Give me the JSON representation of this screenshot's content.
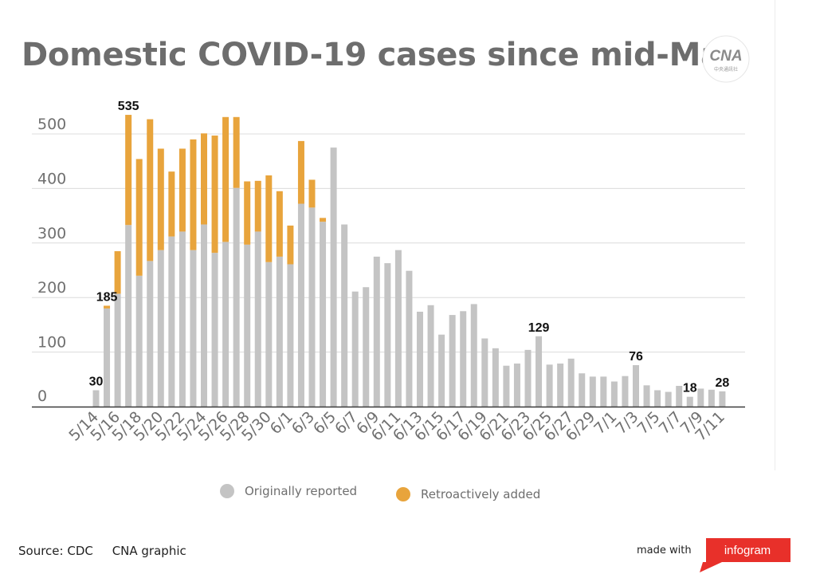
{
  "title": "Domestic COVID-19 cases since mid-May",
  "logo": {
    "text": "CNA",
    "subtext": "中央通訊社"
  },
  "legend": [
    {
      "label": "Originally reported",
      "color": "#c4c4c4"
    },
    {
      "label": "Retroactively added",
      "color": "#e8a43c"
    }
  ],
  "footer": {
    "source": "Source: CDC",
    "credit": "CNA graphic",
    "made_with": "made with",
    "brand": "infogram"
  },
  "chart_data": {
    "type": "bar",
    "stacked": true,
    "categories": [
      "5/14",
      "5/15",
      "5/16",
      "5/17",
      "5/18",
      "5/19",
      "5/20",
      "5/21",
      "5/22",
      "5/23",
      "5/24",
      "5/25",
      "5/26",
      "5/27",
      "5/28",
      "5/29",
      "5/30",
      "5/31",
      "6/1",
      "6/2",
      "6/3",
      "6/4",
      "6/5",
      "6/6",
      "6/7",
      "6/8",
      "6/9",
      "6/10",
      "6/11",
      "6/12",
      "6/13",
      "6/14",
      "6/15",
      "6/16",
      "6/17",
      "6/18",
      "6/19",
      "6/20",
      "6/21",
      "6/22",
      "6/23",
      "6/24",
      "6/25",
      "6/26",
      "6/27",
      "6/28",
      "6/29",
      "6/30",
      "7/1",
      "7/2",
      "7/3",
      "7/4",
      "7/5",
      "7/6",
      "7/7",
      "7/8",
      "7/9",
      "7/10",
      "7/11"
    ],
    "tick_labels": [
      "5/14",
      "5/16",
      "5/18",
      "5/20",
      "5/22",
      "5/24",
      "5/26",
      "5/28",
      "5/30",
      "6/1",
      "6/3",
      "6/5",
      "6/7",
      "6/9",
      "6/11",
      "6/13",
      "6/15",
      "6/17",
      "6/19",
      "6/21",
      "6/23",
      "6/25",
      "6/27",
      "6/29",
      "7/1",
      "7/3",
      "7/5",
      "7/7",
      "7/9",
      "7/11"
    ],
    "series": [
      {
        "name": "Originally reported",
        "color": "#c4c4c4",
        "values": [
          30,
          180,
          207,
          333,
          240,
          267,
          287,
          312,
          321,
          287,
          334,
          282,
          302,
          401,
          297,
          321,
          265,
          275,
          261,
          372,
          365,
          339,
          475,
          334,
          211,
          219,
          275,
          263,
          287,
          249,
          174,
          186,
          132,
          168,
          175,
          188,
          125,
          107,
          75,
          79,
          104,
          129,
          77,
          79,
          88,
          61,
          55,
          55,
          46,
          56,
          76,
          39,
          30,
          27,
          38,
          18,
          33,
          31,
          28
        ]
      },
      {
        "name": "Retroactively added",
        "color": "#e8a43c",
        "values": [
          0,
          5,
          78,
          202,
          214,
          260,
          186,
          119,
          152,
          203,
          167,
          215,
          229,
          130,
          116,
          93,
          159,
          120,
          71,
          115,
          51,
          7,
          0,
          0,
          0,
          0,
          0,
          0,
          0,
          0,
          0,
          0,
          0,
          0,
          0,
          0,
          0,
          0,
          0,
          0,
          0,
          0,
          0,
          0,
          0,
          0,
          0,
          0,
          0,
          0,
          0,
          0,
          0,
          0,
          0,
          0,
          0,
          0,
          0
        ]
      }
    ],
    "data_labels": [
      {
        "index": 0,
        "text": "30"
      },
      {
        "index": 1,
        "text": "185"
      },
      {
        "index": 3,
        "text": "535"
      },
      {
        "index": 41,
        "text": "129"
      },
      {
        "index": 50,
        "text": "76"
      },
      {
        "index": 55,
        "text": "18"
      },
      {
        "index": 58,
        "text": "28"
      }
    ],
    "ylim": [
      0,
      550
    ],
    "yticks": [
      0,
      100,
      200,
      300,
      400,
      500
    ],
    "grid": true,
    "legend_position": "bottom"
  }
}
